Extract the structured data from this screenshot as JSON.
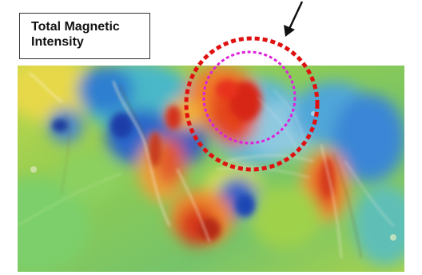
{
  "title": {
    "line1": "Total Magnetic",
    "line2": "Intensity"
  },
  "colors": {
    "outer_circle": "#e01010",
    "inner_circle": "#dd22dd",
    "arrow": "#111111",
    "anomaly_high": "#e0301f",
    "anomaly_low": "#1f4fbf",
    "background_mid": "#9ccf3f"
  },
  "icons": {
    "arrow": "arrow-down-left-icon"
  }
}
